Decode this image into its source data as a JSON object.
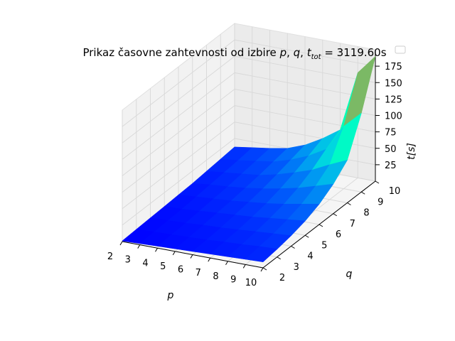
{
  "chart_data": {
    "type": "surface",
    "title": "Prikaz časovne zahtevnosti od izbire p, q, t_tot = 3119.60s",
    "title_parts": {
      "prefix": "Prikaz časovne zahtevnosti od izbire ",
      "p": "p",
      "sep1": ", ",
      "q": "q",
      "sep2": ", ",
      "t": "t",
      "t_sub": "tot",
      "eq": " = 3119.60s"
    },
    "xlabel": "p",
    "ylabel": "q",
    "zlabel": "t[s]",
    "colormap": "rainbow",
    "xlim": [
      2,
      10
    ],
    "ylim": [
      2,
      10
    ],
    "zlim": [
      0,
      200
    ],
    "x_ticks": [
      "2",
      "3",
      "4",
      "5",
      "6",
      "7",
      "8",
      "9",
      "10"
    ],
    "y_ticks": [
      "2",
      "3",
      "4",
      "5",
      "6",
      "7",
      "8",
      "9",
      "10"
    ],
    "z_ticks": [
      "25",
      "50",
      "75",
      "100",
      "125",
      "150",
      "175"
    ],
    "p": [
      2,
      3,
      4,
      5,
      6,
      7,
      8,
      9,
      10
    ],
    "q": [
      2,
      3,
      4,
      5,
      6,
      7,
      8,
      9,
      10
    ],
    "t_rows_by_p": [
      [
        1,
        2,
        3,
        4,
        5,
        6,
        8,
        10,
        12
      ],
      [
        2,
        3,
        4,
        5,
        7,
        9,
        11,
        13,
        16
      ],
      [
        3,
        4,
        5,
        7,
        9,
        11,
        14,
        17,
        20
      ],
      [
        4,
        5,
        7,
        9,
        11,
        14,
        17,
        21,
        25
      ],
      [
        5,
        6,
        8,
        11,
        14,
        18,
        23,
        29,
        35
      ],
      [
        6,
        8,
        10,
        13,
        17,
        23,
        31,
        40,
        50
      ],
      [
        7,
        9,
        12,
        16,
        21,
        29,
        40,
        55,
        68
      ],
      [
        8,
        11,
        14,
        19,
        26,
        37,
        53,
        95,
        160
      ],
      [
        9,
        12,
        16,
        22,
        31,
        45,
        65,
        120,
        190
      ]
    ]
  }
}
